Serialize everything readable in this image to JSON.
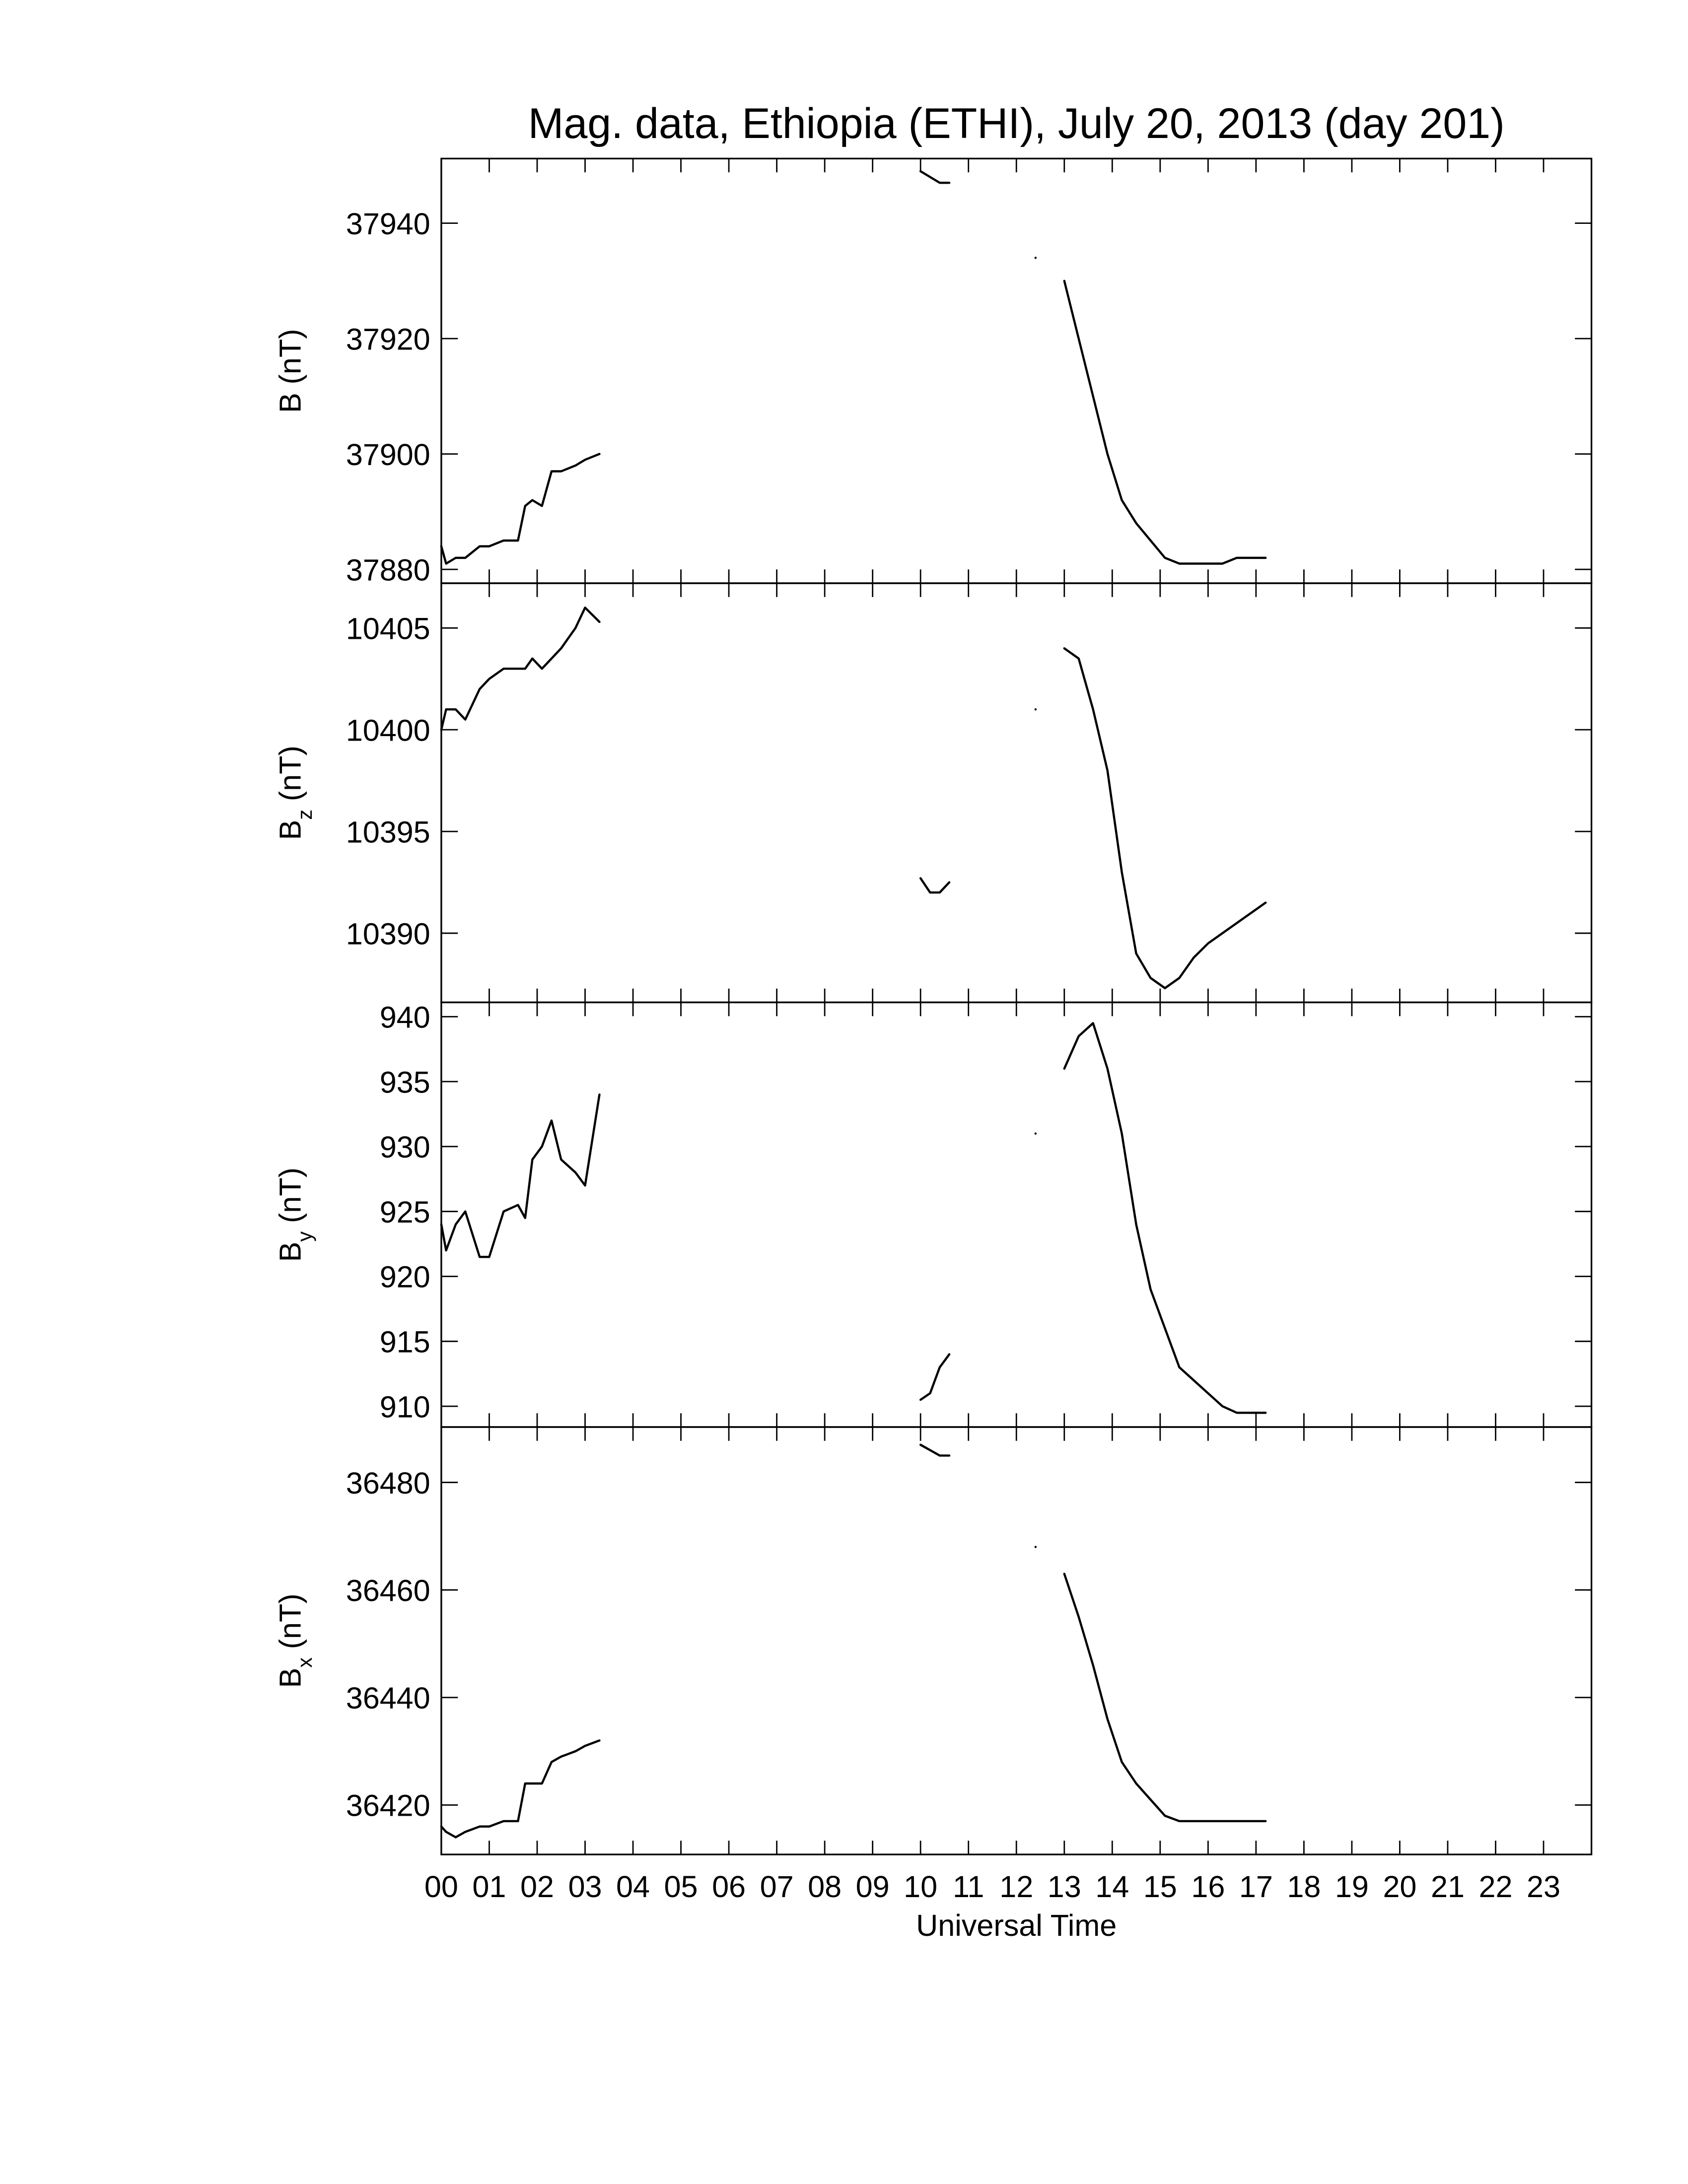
{
  "chart_data": [
    {
      "type": "line",
      "title": "Mag. data, Ethiopia (ETHI), July 20, 2013 (day 201)",
      "y_label": "B",
      "y_label_unit": "(nT)",
      "xlim": [
        0,
        24
      ],
      "ylim": [
        37877.6,
        37951.2
      ],
      "yticks": [
        37880,
        37900,
        37920,
        37940
      ],
      "series": [
        {
          "color": "#000000",
          "x": [
            0,
            0.1,
            0.3,
            0.5,
            0.8,
            1.0,
            1.3,
            1.6,
            1.75,
            1.9,
            2.1,
            2.3,
            2.5,
            2.8,
            3.0,
            3.3,
            6,
            10.0,
            10.2,
            10.4,
            10.6,
            11.5,
            12.4,
            12.7,
            13.0,
            13.3,
            13.6,
            13.9,
            14.2,
            14.5,
            14.8,
            15.1,
            15.4,
            15.7,
            16.0,
            16.3,
            16.6,
            16.9,
            17.2
          ],
          "values": [
            37884,
            37881,
            37882,
            37882,
            37884,
            37884,
            37885,
            37885,
            37891,
            37892,
            37891,
            37897,
            37897,
            37898,
            37899,
            37900,
            null,
            37949,
            37948,
            37947,
            37947,
            null,
            37934,
            null,
            37930,
            37920,
            37910,
            37900,
            37892,
            37888,
            37885,
            37882,
            37881,
            37881,
            37881,
            37881,
            37882,
            37882,
            37882
          ]
        }
      ]
    },
    {
      "type": "line",
      "y_label": "B",
      "y_label_sub": "z",
      "y_label_unit": "(nT)",
      "xlim": [
        0,
        24
      ],
      "ylim": [
        10386.6,
        10407.2
      ],
      "yticks": [
        10390,
        10395,
        10400,
        10405
      ],
      "series": [
        {
          "color": "#000000",
          "x": [
            0,
            0.1,
            0.3,
            0.5,
            0.8,
            1.0,
            1.3,
            1.6,
            1.75,
            1.9,
            2.1,
            2.3,
            2.5,
            2.8,
            3.0,
            3.3,
            6,
            10.0,
            10.2,
            10.4,
            10.6,
            11.5,
            12.4,
            12.7,
            13.0,
            13.3,
            13.6,
            13.9,
            14.2,
            14.5,
            14.8,
            15.1,
            15.4,
            15.7,
            16.0,
            16.3,
            16.6,
            16.9,
            17.2
          ],
          "values": [
            10400,
            10401,
            10401,
            10400.5,
            10402,
            10402.5,
            10403,
            10403,
            10403,
            10403.5,
            10403,
            10403.5,
            10404,
            10405,
            10406,
            10405.3,
            null,
            10392.7,
            10392,
            10392,
            10392.5,
            null,
            10401,
            null,
            10404,
            10403.5,
            10401,
            10398,
            10393,
            10389,
            10387.8,
            10387.3,
            10387.8,
            10388.8,
            10389.5,
            10390,
            10390.5,
            10391,
            10391.5
          ]
        }
      ]
    },
    {
      "type": "line",
      "y_label": "B",
      "y_label_sub": "y",
      "y_label_unit": "(nT)",
      "xlim": [
        0,
        24
      ],
      "ylim": [
        908.4,
        941.1
      ],
      "yticks": [
        910,
        915,
        920,
        925,
        930,
        935,
        940
      ],
      "series": [
        {
          "color": "#000000",
          "x": [
            0,
            0.1,
            0.3,
            0.5,
            0.8,
            1.0,
            1.3,
            1.6,
            1.75,
            1.9,
            2.1,
            2.3,
            2.5,
            2.8,
            3.0,
            3.3,
            6,
            10.0,
            10.2,
            10.4,
            10.6,
            11.5,
            12.4,
            12.7,
            13.0,
            13.3,
            13.6,
            13.9,
            14.2,
            14.5,
            14.8,
            15.1,
            15.4,
            15.7,
            16.0,
            16.3,
            16.6,
            16.9,
            17.2
          ],
          "values": [
            924,
            922,
            924,
            925,
            921.5,
            921.5,
            925,
            925.5,
            924.5,
            929,
            930,
            932,
            929,
            928,
            927,
            934,
            null,
            910.5,
            911,
            913,
            914,
            null,
            931,
            null,
            936,
            938.5,
            939.5,
            936,
            931,
            924,
            919,
            916,
            913,
            912,
            911,
            910,
            909.5,
            909.5,
            909.5
          ]
        }
      ]
    },
    {
      "type": "line",
      "y_label": "B",
      "y_label_sub": "x",
      "y_label_unit": "(nT)",
      "x_label": "Universal Time",
      "xlim": [
        0,
        24
      ],
      "ylim": [
        36410.8,
        36490.3
      ],
      "yticks": [
        36420,
        36440,
        36460,
        36480
      ],
      "xticks": [
        {
          "value": 0,
          "label": "00"
        },
        {
          "value": 1,
          "label": "01"
        },
        {
          "value": 2,
          "label": "02"
        },
        {
          "value": 3,
          "label": "03"
        },
        {
          "value": 4,
          "label": "04"
        },
        {
          "value": 5,
          "label": "05"
        },
        {
          "value": 6,
          "label": "06"
        },
        {
          "value": 7,
          "label": "07"
        },
        {
          "value": 8,
          "label": "08"
        },
        {
          "value": 9,
          "label": "09"
        },
        {
          "value": 10,
          "label": "10"
        },
        {
          "value": 11,
          "label": "11"
        },
        {
          "value": 12,
          "label": "12"
        },
        {
          "value": 13,
          "label": "13"
        },
        {
          "value": 14,
          "label": "14"
        },
        {
          "value": 15,
          "label": "15"
        },
        {
          "value": 16,
          "label": "16"
        },
        {
          "value": 17,
          "label": "17"
        },
        {
          "value": 18,
          "label": "18"
        },
        {
          "value": 19,
          "label": "19"
        },
        {
          "value": 20,
          "label": "20"
        },
        {
          "value": 21,
          "label": "21"
        },
        {
          "value": 22,
          "label": "22"
        },
        {
          "value": 23,
          "label": "23"
        }
      ],
      "series": [
        {
          "color": "#000000",
          "x": [
            0,
            0.1,
            0.3,
            0.5,
            0.8,
            1.0,
            1.3,
            1.6,
            1.75,
            1.9,
            2.1,
            2.3,
            2.5,
            2.8,
            3.0,
            3.3,
            6,
            10.0,
            10.2,
            10.4,
            10.6,
            11.5,
            12.4,
            12.7,
            13.0,
            13.3,
            13.6,
            13.9,
            14.2,
            14.5,
            14.8,
            15.1,
            15.4,
            15.7,
            16.0,
            16.3,
            16.6,
            16.9,
            17.2
          ],
          "values": [
            36416,
            36415,
            36414,
            36415,
            36416,
            36416,
            36417,
            36417,
            36424,
            36424,
            36424,
            36428,
            36429,
            36430,
            36431,
            36432,
            null,
            36487,
            36486,
            36485,
            36485,
            null,
            36468,
            null,
            36463,
            36455,
            36446,
            36436,
            36428,
            36424,
            36421,
            36418,
            36417,
            36417,
            36417,
            36417,
            36417,
            36417,
            36417
          ]
        }
      ]
    }
  ]
}
